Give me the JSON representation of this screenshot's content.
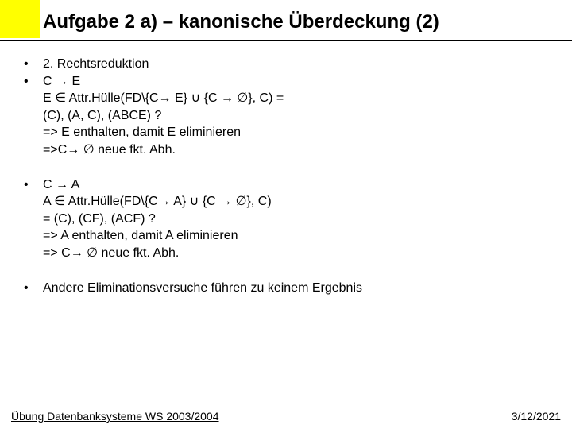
{
  "title": "Aufgabe 2 a) – kanonische Überdeckung (2)",
  "blocks": [
    {
      "items": [
        {
          "bullet": true,
          "text": "2. Rechtsreduktion"
        },
        {
          "bullet": true,
          "text": "C → E"
        },
        {
          "bullet": false,
          "text": "E ∈ Attr.Hülle(FD\\{C→ E} ∪ {C → ∅}, C) ="
        },
        {
          "bullet": false,
          "text": "(C), (A, C), (ABCE) ?"
        },
        {
          "bullet": false,
          "text": "=> E enthalten, damit E eliminieren"
        },
        {
          "bullet": false,
          "text": "=>C→ ∅ neue fkt. Abh."
        }
      ]
    },
    {
      "items": [
        {
          "bullet": true,
          "text": "C → A"
        },
        {
          "bullet": false,
          "text": "A ∈ Attr.Hülle(FD\\{C→ A} ∪ {C → ∅}, C)"
        },
        {
          "bullet": false,
          "text": "= (C), (CF), (ACF) ?"
        },
        {
          "bullet": false,
          "text": "=> A enthalten, damit A eliminieren"
        },
        {
          "bullet": false,
          "text": "=> C→ ∅ neue fkt. Abh."
        }
      ]
    },
    {
      "items": [
        {
          "bullet": true,
          "text": "Andere Eliminationsversuche führen zu keinem Ergebnis"
        }
      ]
    }
  ],
  "footer": {
    "left": "Übung Datenbanksysteme WS 2003/2004",
    "right": "3/12/2021"
  },
  "colors": {
    "accent": "#ffff00",
    "text": "#000000",
    "background": "#ffffff"
  }
}
